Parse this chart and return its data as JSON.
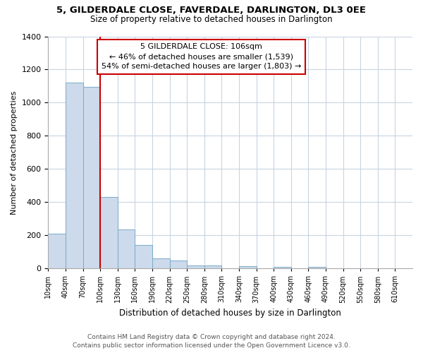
{
  "title": "5, GILDERDALE CLOSE, FAVERDALE, DARLINGTON, DL3 0EE",
  "subtitle": "Size of property relative to detached houses in Darlington",
  "xlabel": "Distribution of detached houses by size in Darlington",
  "ylabel": "Number of detached properties",
  "bin_labels": [
    "10sqm",
    "40sqm",
    "70sqm",
    "100sqm",
    "130sqm",
    "160sqm",
    "190sqm",
    "220sqm",
    "250sqm",
    "280sqm",
    "310sqm",
    "340sqm",
    "370sqm",
    "400sqm",
    "430sqm",
    "460sqm",
    "490sqm",
    "520sqm",
    "550sqm",
    "580sqm",
    "610sqm"
  ],
  "bar_values": [
    210,
    1120,
    1095,
    430,
    235,
    140,
    60,
    50,
    20,
    20,
    0,
    15,
    0,
    10,
    0,
    10,
    0,
    0,
    0,
    0,
    0
  ],
  "bar_color": "#ccdaeb",
  "bar_edge_color": "#7aaac8",
  "vline_color": "#cc0000",
  "annotation_title": "5 GILDERDALE CLOSE: 106sqm",
  "annotation_line1": "← 46% of detached houses are smaller (1,539)",
  "annotation_line2": "54% of semi-detached houses are larger (1,803) →",
  "annotation_box_color": "#ffffff",
  "annotation_box_edge": "#cc0000",
  "ylim": [
    0,
    1400
  ],
  "yticks": [
    0,
    200,
    400,
    600,
    800,
    1000,
    1200,
    1400
  ],
  "footer_line1": "Contains HM Land Registry data © Crown copyright and database right 2024.",
  "footer_line2": "Contains public sector information licensed under the Open Government Licence v3.0.",
  "background_color": "#ffffff",
  "grid_color": "#c8d4e0"
}
